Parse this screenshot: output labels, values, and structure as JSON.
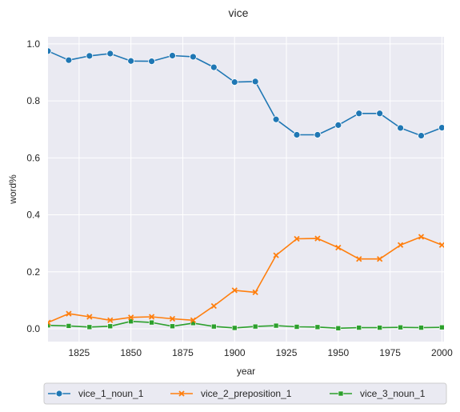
{
  "chart_data": {
    "type": "line",
    "title": "vice",
    "xlabel": "year",
    "ylabel": "word%",
    "xlim": [
      1810,
      2001
    ],
    "ylim": [
      -0.045,
      1.025
    ],
    "xticks": [
      1825,
      1850,
      1875,
      1900,
      1925,
      1950,
      1975,
      2000
    ],
    "xtick_labels": [
      "1825",
      "1850",
      "1875",
      "1900",
      "1925",
      "1950",
      "1975",
      "2000"
    ],
    "yticks": [
      0.0,
      0.2,
      0.4,
      0.6,
      0.8,
      1.0
    ],
    "ytick_labels": [
      "0.0",
      "0.2",
      "0.4",
      "0.6",
      "0.8",
      "1.0"
    ],
    "grid": true,
    "legend_placement": "bottom-center",
    "x": [
      1810,
      1820,
      1830,
      1840,
      1850,
      1860,
      1870,
      1880,
      1890,
      1900,
      1910,
      1920,
      1930,
      1940,
      1950,
      1960,
      1970,
      1980,
      1990,
      2000
    ],
    "series": [
      {
        "name": "vice_1_noun_1",
        "color": "#1f77b4",
        "marker": "circle",
        "values": [
          0.975,
          0.943,
          0.958,
          0.966,
          0.94,
          0.939,
          0.959,
          0.955,
          0.918,
          0.866,
          0.868,
          0.735,
          0.681,
          0.681,
          0.715,
          0.756,
          0.756,
          0.705,
          0.678,
          0.706
        ]
      },
      {
        "name": "vice_2_preposition_1",
        "color": "#ff7f0e",
        "marker": "x",
        "values": [
          0.022,
          0.053,
          0.042,
          0.03,
          0.04,
          0.042,
          0.035,
          0.03,
          0.08,
          0.135,
          0.128,
          0.258,
          0.316,
          0.317,
          0.285,
          0.245,
          0.245,
          0.294,
          0.323,
          0.294
        ]
      },
      {
        "name": "vice_3_noun_1",
        "color": "#2ca02c",
        "marker": "square",
        "values": [
          0.012,
          0.01,
          0.006,
          0.009,
          0.026,
          0.022,
          0.009,
          0.02,
          0.008,
          0.003,
          0.008,
          0.011,
          0.007,
          0.006,
          0.002,
          0.004,
          0.004,
          0.005,
          0.004,
          0.005
        ]
      }
    ]
  }
}
